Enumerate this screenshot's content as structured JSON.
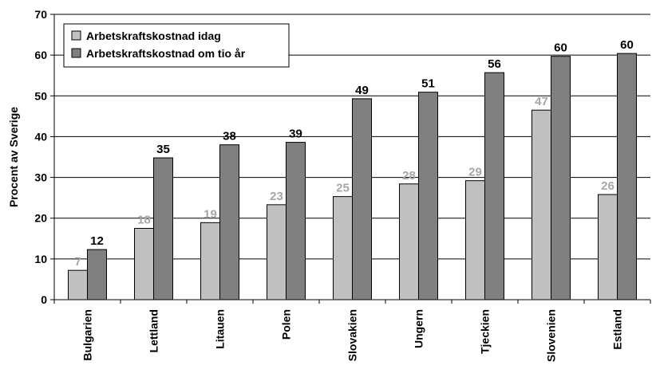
{
  "chart_data": {
    "type": "bar",
    "title": "",
    "xlabel": "",
    "ylabel": "Procent av Sverige",
    "ylim": [
      0,
      70
    ],
    "yticks": [
      0,
      10,
      20,
      30,
      40,
      50,
      60,
      70
    ],
    "grid": true,
    "legend_position": "top-left",
    "categories": [
      "Bulgarien",
      "Lettland",
      "Litauen",
      "Polen",
      "Slovakien",
      "Ungern",
      "Tjeckien",
      "Slovenien",
      "Estland"
    ],
    "series": [
      {
        "name": "Arbetskraftskostnad idag",
        "color": "#c0c0c0",
        "label_color": "#a6a6a6",
        "values": [
          7,
          18,
          19,
          23,
          25,
          28,
          29,
          47,
          26
        ],
        "labels": [
          "7",
          "18",
          "19",
          "23",
          "25",
          "28",
          "29",
          "47",
          "26"
        ],
        "drawn_values": [
          7.2,
          17.5,
          18.9,
          23.3,
          25.3,
          28.4,
          29.2,
          46.5,
          25.8
        ]
      },
      {
        "name": "Arbetskraftskostnad om tio år",
        "color": "#808080",
        "label_color": "#000000",
        "values": [
          12,
          35,
          38,
          39,
          49,
          51,
          56,
          60,
          60
        ],
        "labels": [
          "12",
          "35",
          "38",
          "39",
          "49",
          "51",
          "56",
          "60",
          "60"
        ],
        "drawn_values": [
          12.3,
          34.8,
          38.0,
          38.6,
          49.3,
          50.9,
          55.7,
          59.7,
          60.4
        ]
      }
    ]
  }
}
